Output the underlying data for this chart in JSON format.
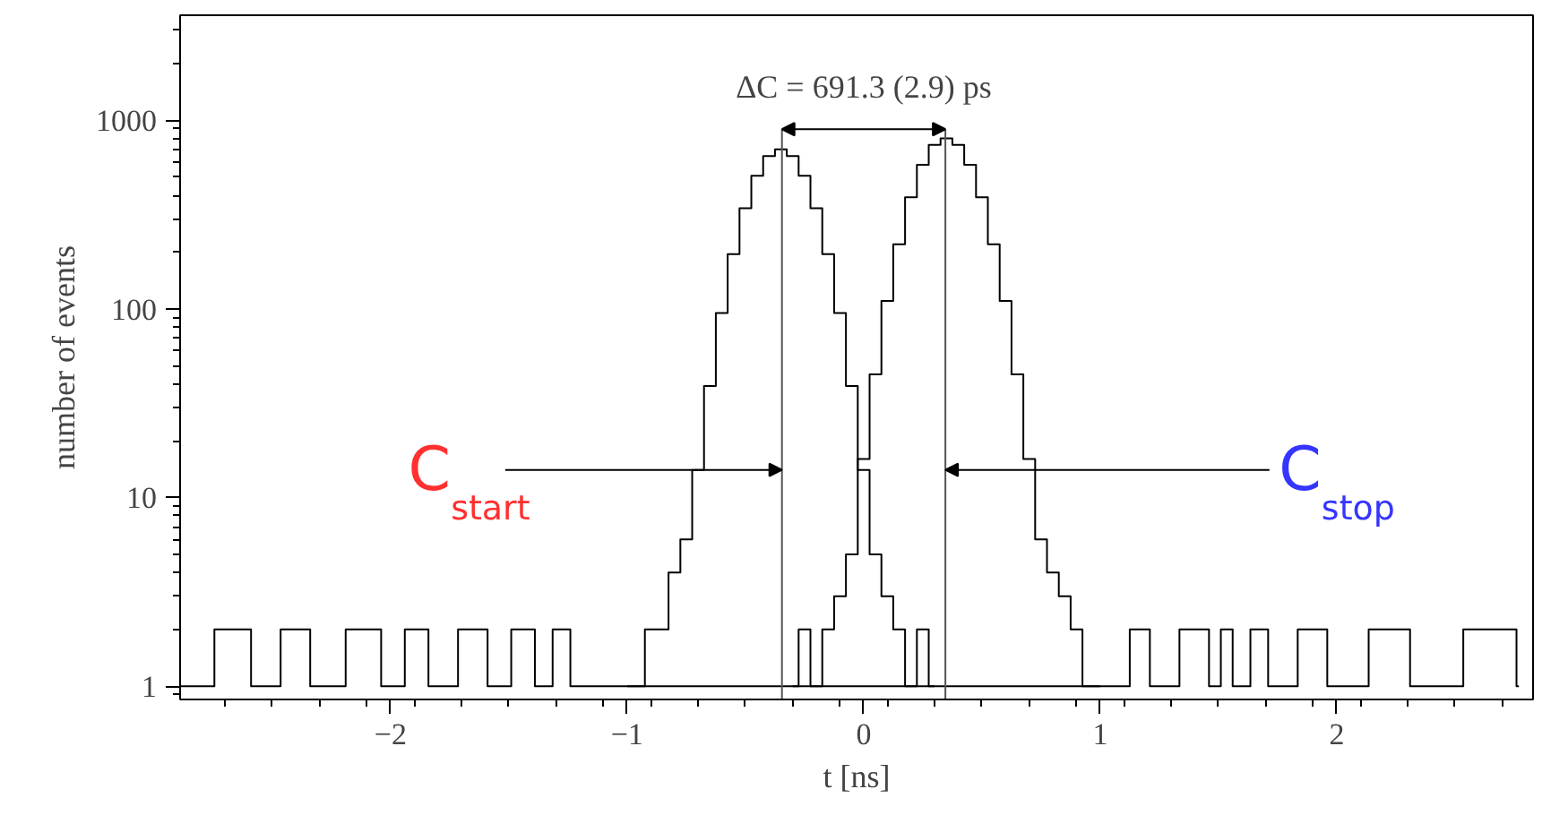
{
  "chart_data": {
    "type": "step",
    "xlabel": "t [ns]",
    "ylabel": "number of events",
    "xlim": [
      -2.89,
      2.83
    ],
    "ylim": [
      0.85,
      3600
    ],
    "xticks": [
      {
        "value": -2,
        "label": "−2"
      },
      {
        "value": -1,
        "label": "−1"
      },
      0,
      1,
      2
    ],
    "yticks": [
      1,
      10,
      100,
      1000
    ],
    "log": "y",
    "grid": false,
    "series": [
      {
        "color": "#000000",
        "x": [
          -1.0,
          -0.95,
          -0.9,
          -0.85,
          -0.8,
          -0.75,
          -0.7,
          -0.65,
          -0.6,
          -0.55,
          -0.5,
          -0.45,
          -0.4,
          -0.35,
          -0.3,
          -0.25,
          -0.2,
          -0.15,
          -0.1,
          -0.05,
          0.0,
          0.05,
          0.1,
          0.15,
          0.2,
          0.25,
          0.3
        ],
        "values": [
          1,
          1,
          2,
          2,
          4,
          6,
          14,
          39,
          95,
          195,
          341,
          508,
          646,
          700,
          646,
          508,
          341,
          195,
          95,
          39,
          14,
          5,
          3,
          2,
          1,
          2,
          1
        ]
      },
      {
        "color": "#000000",
        "x": [
          -0.3,
          -0.25,
          -0.2,
          -0.15,
          -0.1,
          -0.05,
          0.0,
          0.05,
          0.1,
          0.15,
          0.2,
          0.25,
          0.3,
          0.35,
          0.4,
          0.45,
          0.5,
          0.55,
          0.6,
          0.65,
          0.7,
          0.75,
          0.8,
          0.85,
          0.9,
          0.95,
          1.0
        ],
        "values": [
          1,
          2,
          1,
          2,
          3,
          5,
          16,
          45,
          110,
          220,
          390,
          580,
          740,
          800,
          740,
          580,
          390,
          220,
          110,
          45,
          16,
          6,
          4,
          3,
          2,
          1,
          1
        ]
      },
      {
        "color": "#000000",
        "x": [
          -2.89,
          -2.6,
          -2.58,
          -2.35,
          -2.33,
          -2.05,
          -2.03,
          -1.85,
          -1.83,
          -1.6,
          -1.58,
          -1.4,
          -1.38,
          -1.25,
          -1.23,
          -1.05,
          1.05,
          1.2,
          1.22,
          1.45,
          1.47,
          1.55,
          1.57,
          1.7,
          1.72,
          1.95,
          1.97,
          2.3,
          2.32,
          2.75,
          2.77
        ],
        "values": [
          1,
          2,
          1,
          2,
          1,
          2,
          1,
          2,
          1,
          2,
          1,
          2,
          1,
          2,
          1,
          1,
          1,
          2,
          1,
          2,
          1,
          2,
          1,
          2,
          1,
          2,
          1,
          2,
          1,
          2,
          1
        ]
      }
    ],
    "ref_lines": [
      {
        "axis": "x",
        "value": -0.3455,
        "color": "#555555"
      },
      {
        "axis": "x",
        "value": 0.3455,
        "color": "#555555"
      }
    ],
    "annotations": [
      "ΔC = 691.3 (2.9) ps",
      {
        "text": "C$_{start}$",
        "x": -0.3455,
        "y": 14
      },
      {
        "text": "C$_{stop}$",
        "x": 0.3455,
        "y": 14
      }
    ]
  }
}
